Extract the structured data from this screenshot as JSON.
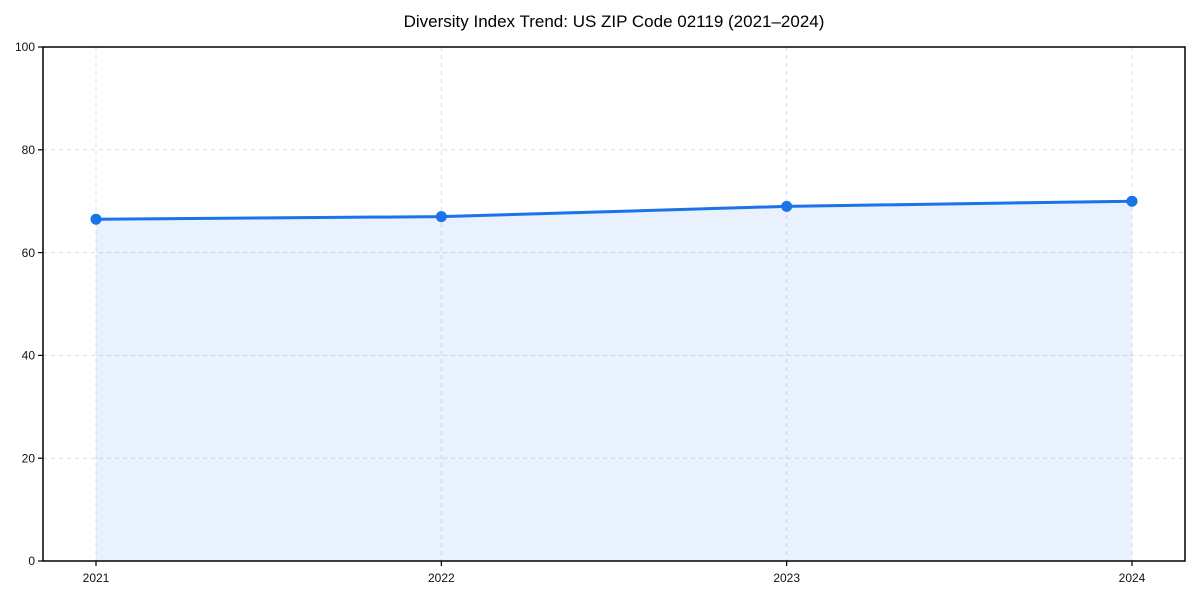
{
  "chart_data": {
    "type": "area",
    "title": "Diversity Index Trend: US ZIP Code 02119 (2021–2024)",
    "categories": [
      "2021",
      "2022",
      "2023",
      "2024"
    ],
    "series": [
      {
        "name": "Diversity Index",
        "values": [
          66.5,
          67,
          69,
          70
        ]
      }
    ],
    "xlabel": "",
    "ylabel": "",
    "ylim": [
      0,
      100
    ],
    "yticks": [
      0,
      20,
      40,
      60,
      80,
      100
    ],
    "grid": true,
    "grid_style": "dashed",
    "legend": false,
    "colors": {
      "line": "#1a73e8",
      "fill": "#1a73e8",
      "fill_opacity": 0.1,
      "grid": "#dcdcdc",
      "spine": "#000000",
      "text": "#111111"
    }
  }
}
